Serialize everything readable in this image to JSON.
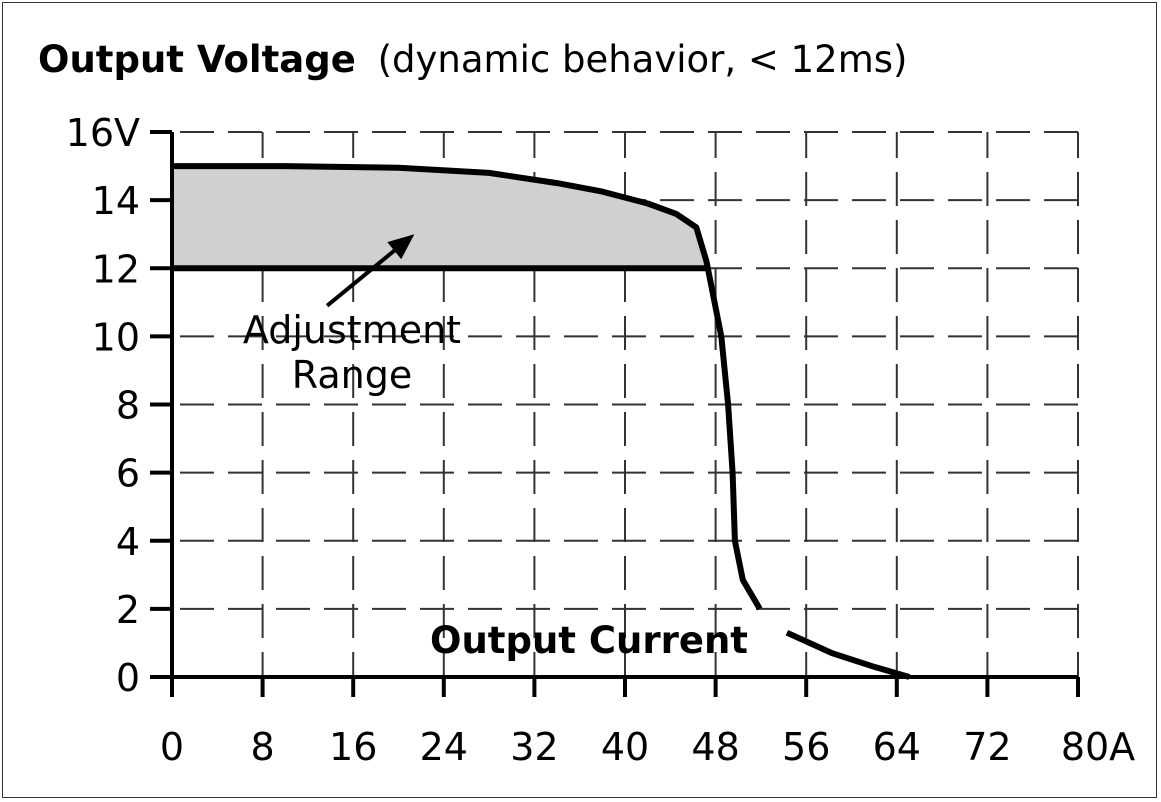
{
  "chart_data": {
    "type": "line",
    "title_bold": "Output Voltage",
    "title_rest": "(dynamic behavior, < 12ms)",
    "xlabel": "Output Current",
    "ylabel": "",
    "xlim": [
      0,
      80
    ],
    "ylim": [
      0,
      16
    ],
    "x_ticks": [
      0,
      8,
      16,
      24,
      32,
      40,
      48,
      56,
      64,
      72,
      80
    ],
    "x_tick_labels": [
      "0",
      "8",
      "16",
      "24",
      "32",
      "40",
      "48",
      "56",
      "64",
      "72",
      "80A"
    ],
    "y_ticks": [
      0,
      2,
      4,
      6,
      8,
      10,
      12,
      14,
      16
    ],
    "y_tick_labels": [
      "0",
      "2",
      "4",
      "6",
      "8",
      "10",
      "12",
      "14",
      "16V"
    ],
    "grid": true,
    "grid_style": "dashed",
    "series": [
      {
        "x": [
          0,
          10,
          20,
          28,
          34,
          38,
          42,
          44.5,
          46.3,
          47.2,
          48.5,
          49.1,
          49.5,
          49.7,
          50.4,
          51.9,
          54.3,
          58.3,
          62,
          65.1
        ],
        "y": [
          15,
          15,
          14.95,
          14.8,
          14.5,
          14.25,
          13.9,
          13.6,
          13.2,
          12.2,
          10,
          8,
          6,
          4,
          2.85,
          2,
          1.3,
          0.7,
          0.3,
          0
        ],
        "color": "#000000",
        "gap_x": [
          51.9,
          54.3
        ]
      }
    ],
    "shaded_region": {
      "label_line1": "Adjustment",
      "label_line2": "Range",
      "lower_y": 12,
      "x_range": [
        0,
        47.2
      ],
      "fill_color": "#d0d0d0"
    },
    "annotation_arrow": {
      "from": [
        13.7,
        10.9
      ],
      "to": [
        21.4,
        13.0
      ]
    }
  }
}
